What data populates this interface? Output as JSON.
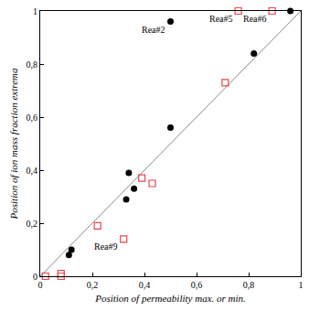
{
  "chart_data": {
    "type": "scatter",
    "x_label": "Position of permeability max. or min.",
    "y_label": "Position of ion mass fraction extrema",
    "xlim": [
      0,
      1
    ],
    "ylim": [
      0,
      1
    ],
    "xticks": [
      0,
      {
        "value": 0.2,
        "label": "0,2"
      },
      {
        "value": 0.4,
        "label": "0,4"
      },
      {
        "value": 0.6,
        "label": "0,6"
      },
      {
        "value": 0.8,
        "label": "0,8"
      },
      1
    ],
    "yticks": [
      0,
      {
        "value": 0.2,
        "label": "0,2"
      },
      {
        "value": 0.4,
        "label": "0,4"
      },
      {
        "value": 0.6,
        "label": "0,6"
      },
      {
        "value": 0.8,
        "label": "0,8"
      },
      1
    ],
    "grid": false,
    "series": [
      {
        "type": "line",
        "color": "#888888",
        "line_style": "solid",
        "x": [
          0,
          1
        ],
        "values": [
          0,
          1
        ]
      },
      {
        "type": "scatter",
        "color": "#000000",
        "marker": "circle",
        "x": [
          0.11,
          0.12,
          0.33,
          0.34,
          0.36,
          0.5,
          0.5,
          0.82,
          0.96
        ],
        "values": [
          0.08,
          0.1,
          0.29,
          0.39,
          0.33,
          0.56,
          0.96,
          0.84,
          1.0
        ]
      },
      {
        "type": "scatter",
        "color": "#e8474b",
        "marker": "square-open",
        "x": [
          0.02,
          0.08,
          0.08,
          0.22,
          0.32,
          0.39,
          0.43,
          0.71,
          0.76,
          0.89
        ],
        "values": [
          0.0,
          0.0,
          0.01,
          0.19,
          0.14,
          0.37,
          0.35,
          0.73,
          1.0,
          1.0
        ]
      }
    ],
    "annotations": [
      {
        "text": "Rea#2",
        "x": 0.5,
        "y": 0.96
      },
      {
        "text": "Rea#5",
        "x": 0.76,
        "y": 1.0
      },
      {
        "text": "Rea#6",
        "x": 0.89,
        "y": 1.0
      },
      {
        "text": "Rea#9",
        "x": 0.32,
        "y": 0.14
      }
    ]
  }
}
